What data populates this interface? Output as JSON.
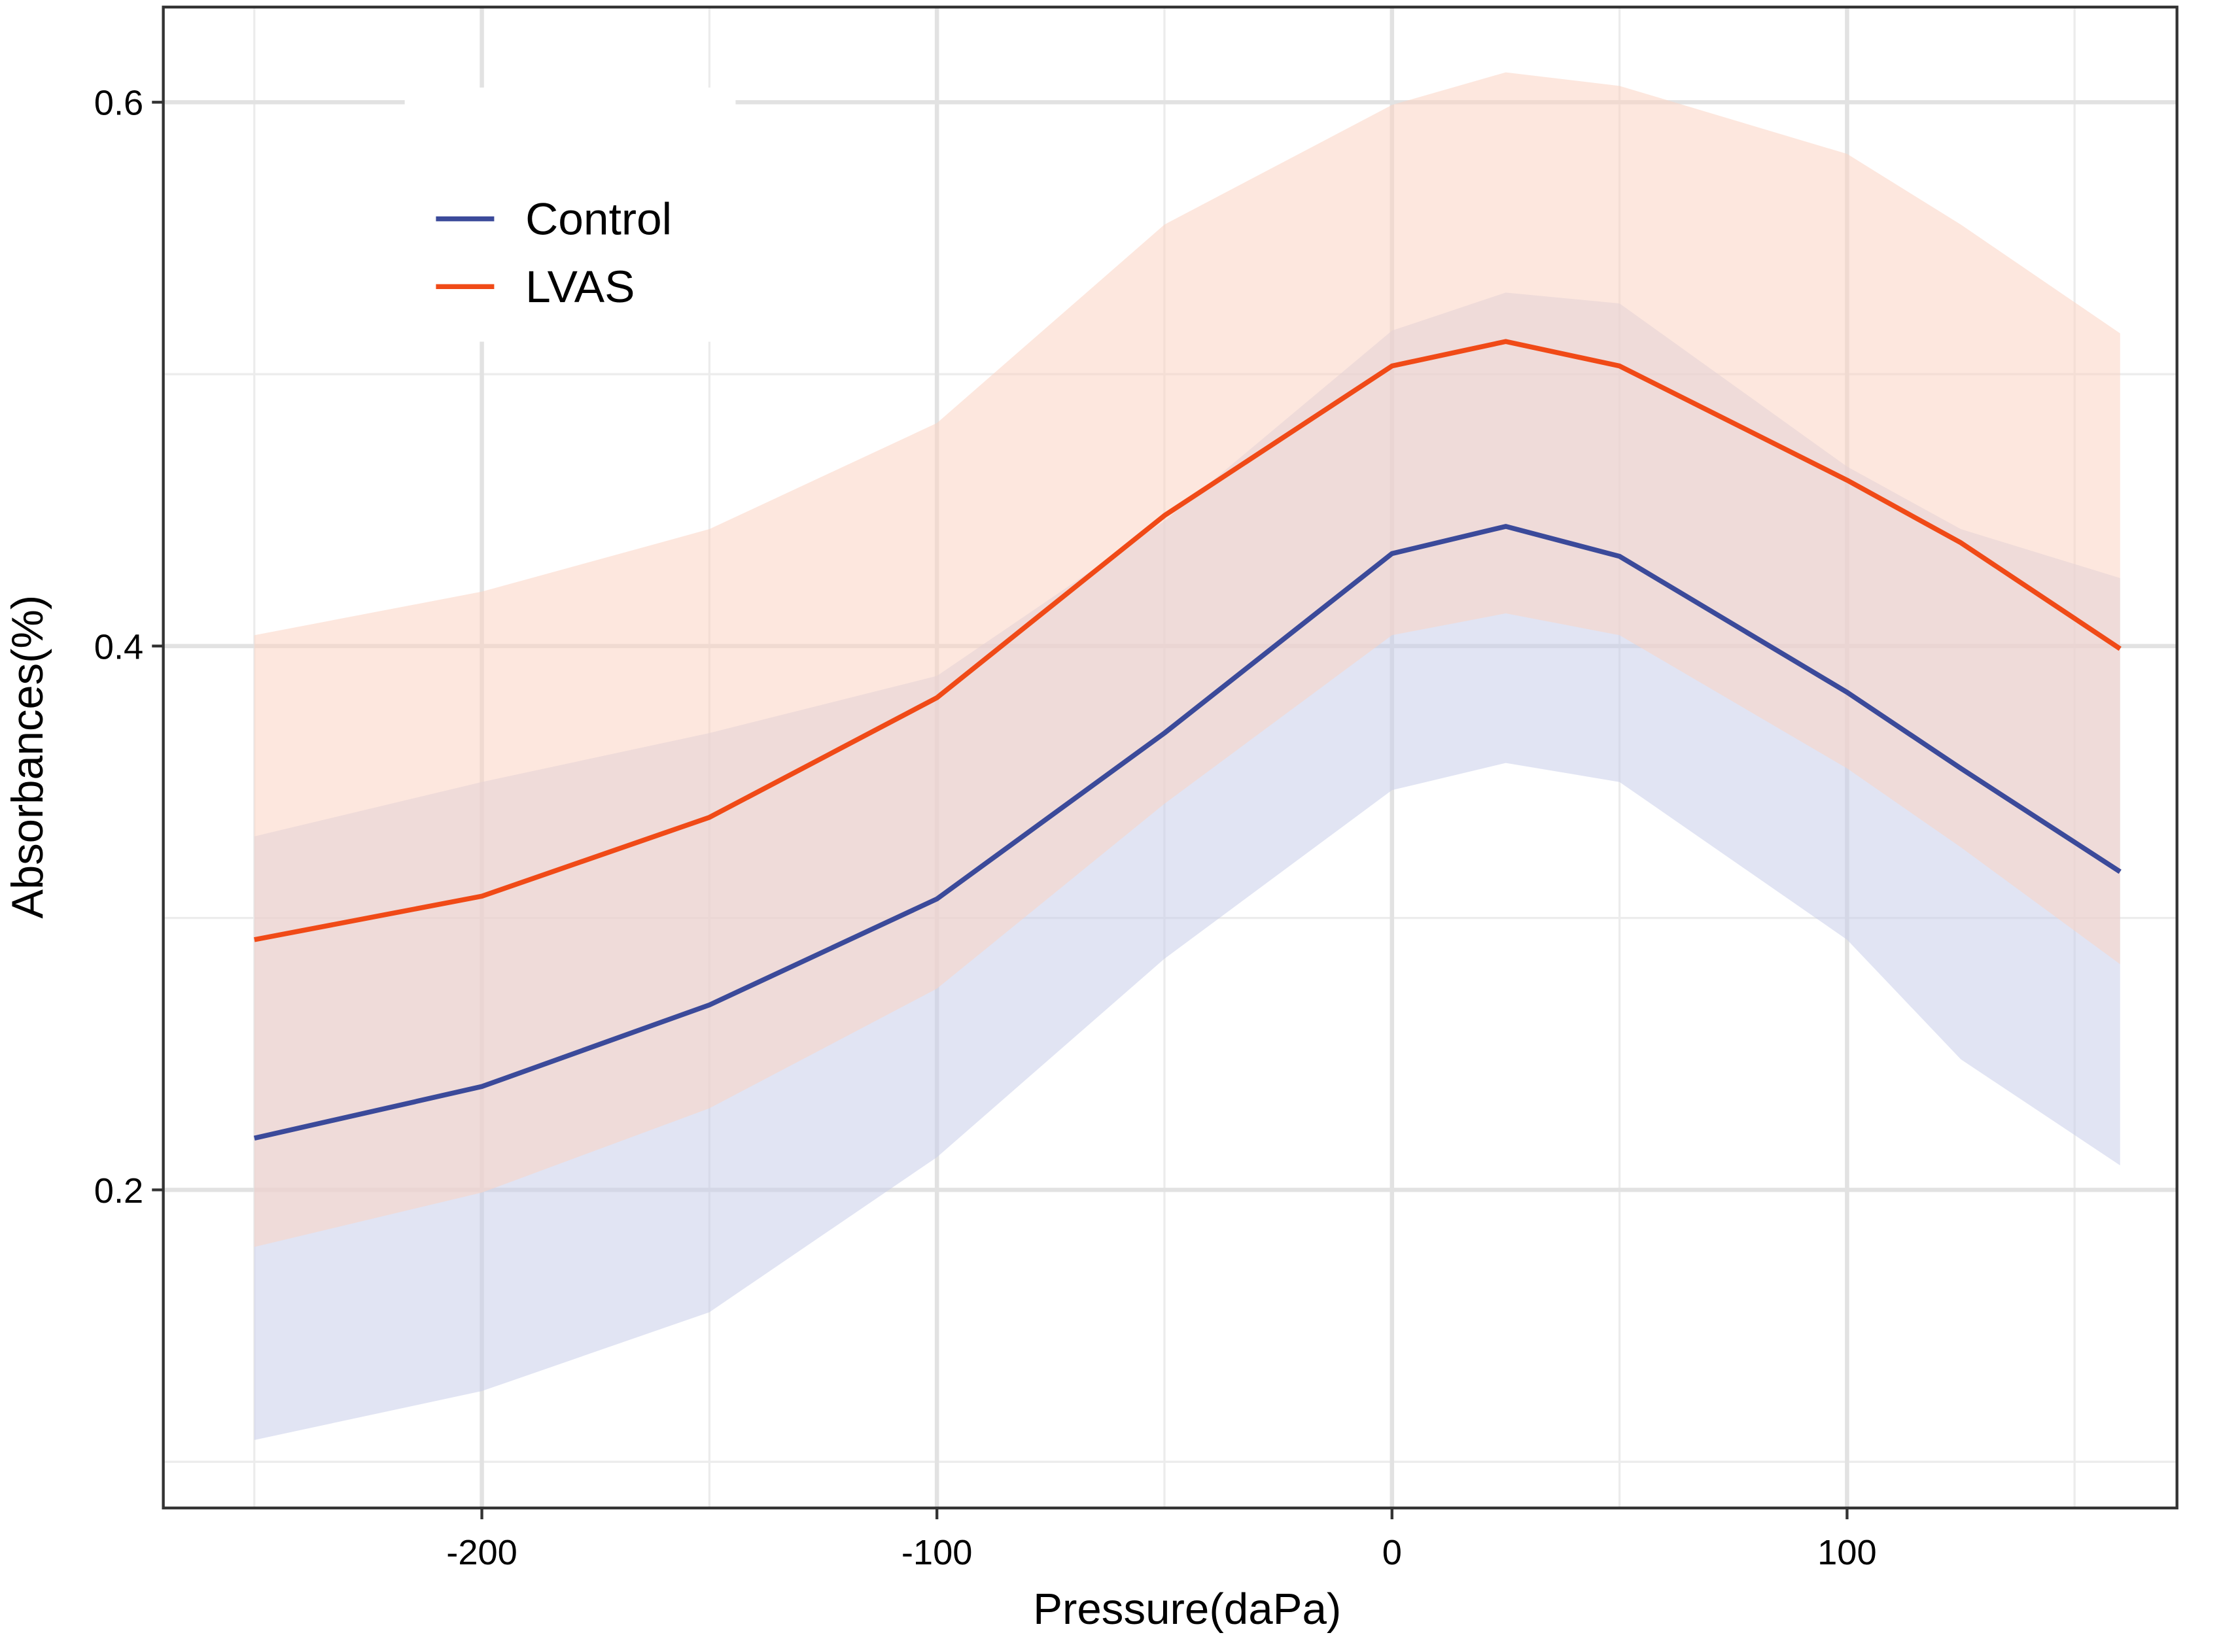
{
  "chart_data": {
    "type": "line",
    "xlabel": "Pressure(daPa)",
    "ylabel": "Absorbances(%)",
    "x": [
      -250,
      -200,
      -150,
      -100,
      -50,
      0,
      25,
      50,
      100,
      125,
      160
    ],
    "series": [
      {
        "name": "Control",
        "color": "#3b4a9a",
        "band_color": "#c9cdea",
        "values": [
          0.219,
          0.238,
          0.268,
          0.307,
          0.368,
          0.434,
          0.444,
          0.433,
          0.383,
          0.355,
          0.317
        ],
        "lower": [
          0.108,
          0.126,
          0.155,
          0.212,
          0.285,
          0.347,
          0.357,
          0.35,
          0.292,
          0.248,
          0.209
        ],
        "upper": [
          0.33,
          0.35,
          0.368,
          0.389,
          0.446,
          0.516,
          0.53,
          0.526,
          0.466,
          0.443,
          0.425
        ]
      },
      {
        "name": "LVAS",
        "color": "#f04a17",
        "band_color": "#fcd3c2",
        "values": [
          0.292,
          0.308,
          0.337,
          0.381,
          0.448,
          0.503,
          0.512,
          0.503,
          0.461,
          0.438,
          0.399
        ],
        "lower": [
          0.179,
          0.199,
          0.23,
          0.274,
          0.342,
          0.404,
          0.412,
          0.404,
          0.355,
          0.326,
          0.283
        ],
        "upper": [
          0.404,
          0.42,
          0.443,
          0.482,
          0.555,
          0.599,
          0.611,
          0.606,
          0.581,
          0.555,
          0.515
        ]
      }
    ],
    "xlim": [
      -270,
      172.5
    ],
    "ylim": [
      0.083,
      0.635
    ],
    "xticks": [
      -200,
      -100,
      0,
      100
    ],
    "yticks": [
      0.2,
      0.4,
      0.6
    ],
    "xminor": [
      -250,
      -150,
      -50,
      50,
      150
    ],
    "yminor": [
      0.1,
      0.3,
      0.5
    ],
    "grid": true,
    "legend": "top-left"
  }
}
